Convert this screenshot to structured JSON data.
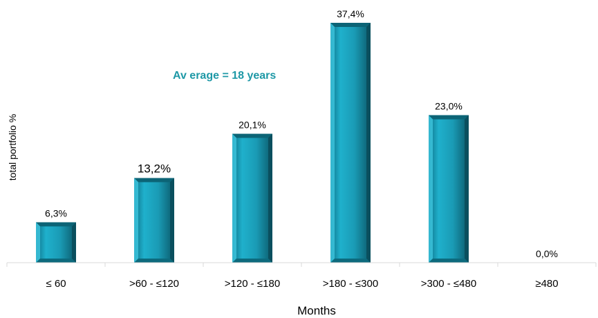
{
  "chart_data": {
    "type": "bar",
    "categories": [
      "≤ 60",
      ">60 - ≤120",
      ">120 - ≤180",
      ">180 - ≤300",
      ">300 - ≤480",
      "≥480"
    ],
    "values": [
      6.3,
      13.2,
      20.1,
      37.4,
      23.0,
      0.0
    ],
    "data_labels": [
      "6,3%",
      "13,2%",
      "20,1%",
      "37,4%",
      "23,0%",
      "0,0%"
    ],
    "ylim": [
      0,
      40
    ],
    "ylabel": "total portfolio %",
    "xlabel": "Months",
    "annotation": "Av erage = 18 years",
    "grid": false,
    "colors": {
      "bar": "#1a9bb5",
      "bar_dark": "#0c6476",
      "bar_light": "#3cc3dc",
      "annotation": "#1d98a6"
    }
  }
}
